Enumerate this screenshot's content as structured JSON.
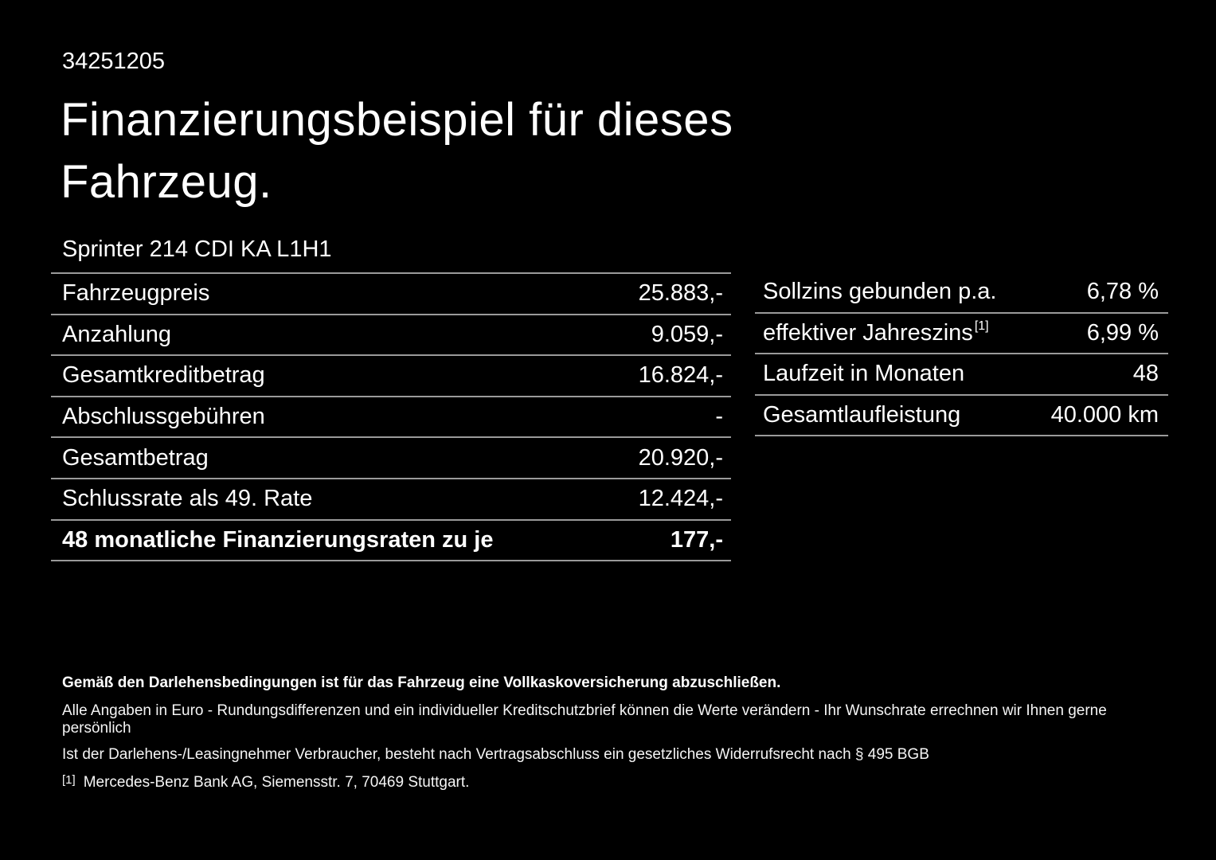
{
  "page": {
    "background": "#000000",
    "text_color": "#ffffff",
    "line_color": "#9a9a9a"
  },
  "header": {
    "doc_number": "34251205",
    "title_line1": "Finanzierungsbeispiel für dieses",
    "title_line2": "Fahrzeug.",
    "vehicle_model": "Sprinter 214 CDI KA L1H1"
  },
  "left_table": {
    "rows": [
      {
        "label": "Fahrzeugpreis",
        "value": "25.883,-"
      },
      {
        "label": "Anzahlung",
        "value": "9.059,-"
      },
      {
        "label": "Gesamtkreditbetrag",
        "value": "16.824,-"
      },
      {
        "label": "Abschlussgebühren",
        "value": "-"
      },
      {
        "label": "Gesamtbetrag",
        "value": "20.920,-"
      },
      {
        "label": "Schlussrate als 49. Rate",
        "value": "12.424,-"
      },
      {
        "label": "48 monatliche Finanzierungsraten zu je",
        "value": "177,-"
      }
    ]
  },
  "right_table": {
    "rows": [
      {
        "label": "Sollzins gebunden p.a.",
        "value": "6,78 %"
      },
      {
        "label": "effektiver Jahreszins",
        "label_sup": "[1]",
        "value": "6,99 %"
      },
      {
        "label": "Laufzeit in Monaten",
        "value": "48"
      },
      {
        "label": "Gesamtlaufleistung",
        "value": "40.000 km"
      }
    ]
  },
  "footer": {
    "line1": "Gemäß den Darlehensbedingungen ist für das Fahrzeug eine Vollkaskoversicherung abzuschließen.",
    "line2": "Alle Angaben in Euro - Rundungsdifferenzen und ein individueller Kreditschutzbrief können die Werte verändern - Ihr Wunschrate errechnen wir Ihnen gerne persönlich",
    "line3": "Ist der Darlehens-/Leasingnehmer Verbraucher, besteht nach Vertragsabschluss ein gesetzliches Widerrufsrecht nach § 495 BGB",
    "footnote_mark": "[1]",
    "footnote_text": "Mercedes-Benz Bank AG, Siemensstr. 7, 70469 Stuttgart."
  }
}
